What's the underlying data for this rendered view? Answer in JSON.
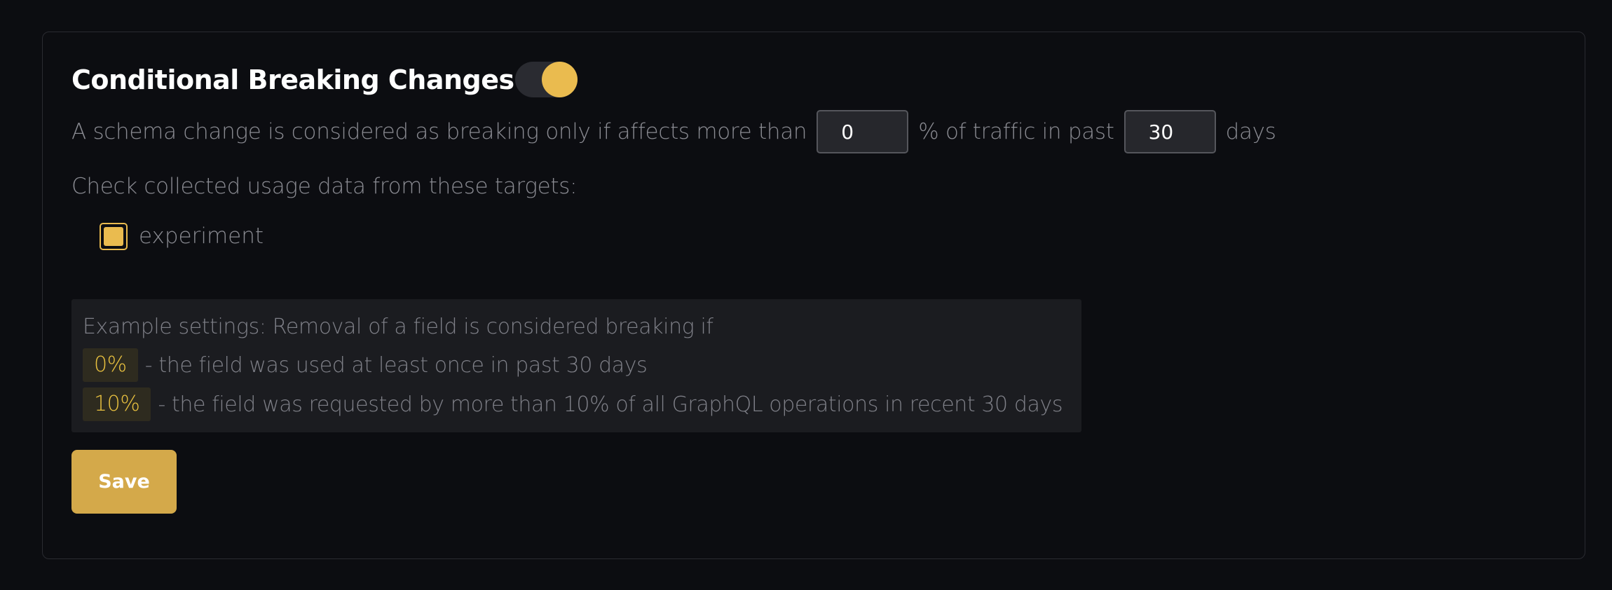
{
  "section": {
    "title": "Conditional Breaking Changes",
    "enabled": true,
    "accent_color": "#eabb4f"
  },
  "threshold": {
    "prefix": "A schema change is considered as breaking only if affects more than",
    "percent_value": "0",
    "middle": "% of traffic in past",
    "days_value": "30",
    "suffix": "days"
  },
  "targets": {
    "label": "Check collected usage data from these targets:",
    "items": [
      {
        "label": "experiment",
        "checked": true
      }
    ]
  },
  "example": {
    "heading": "Example settings: Removal of a field is considered breaking if",
    "lines": [
      {
        "badge": "0%",
        "text": "- the field was used at least once in past 30 days"
      },
      {
        "badge": "10%",
        "text": "- the field was requested by more than 10% of all GraphQL operations in recent 30 days"
      }
    ]
  },
  "actions": {
    "save_label": "Save"
  }
}
